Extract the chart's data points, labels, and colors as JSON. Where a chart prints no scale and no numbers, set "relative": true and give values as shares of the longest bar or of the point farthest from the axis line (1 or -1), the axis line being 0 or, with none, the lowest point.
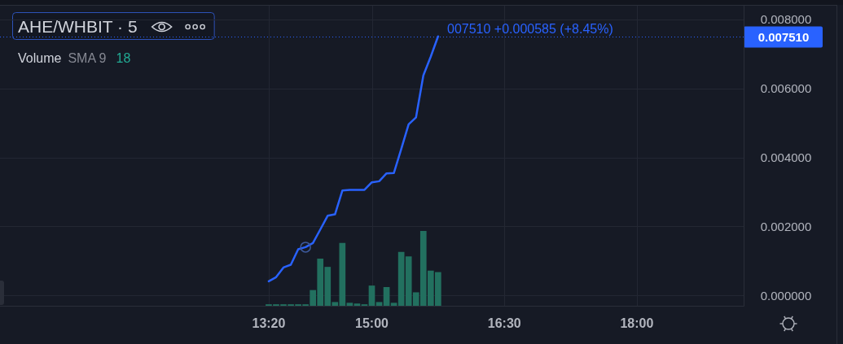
{
  "chart_data": [
    {
      "type": "line",
      "title": "AHE/WHBIT · 5",
      "categories": [
        null,
        null,
        null,
        null,
        null,
        null,
        null,
        null,
        null,
        null,
        null,
        null,
        null,
        null,
        null,
        null,
        null,
        null,
        null,
        null,
        null,
        null,
        null,
        null,
        null,
        null,
        null,
        null,
        null,
        null,
        null,
        null,
        null,
        null,
        null,
        null,
        "13:20",
        null,
        null,
        null,
        null,
        null,
        null,
        null,
        null,
        null,
        null,
        null,
        null,
        null,
        "15:00",
        null,
        null,
        null,
        null,
        null,
        null,
        null,
        null,
        null,
        null,
        null,
        null,
        null,
        null,
        null,
        null,
        null,
        "16:30",
        null,
        null,
        null,
        null,
        null,
        null,
        null,
        null,
        null,
        null,
        null,
        null,
        null,
        null,
        null,
        null,
        null,
        "18:00",
        null,
        null,
        null,
        null,
        null,
        null,
        null,
        null,
        null,
        null,
        null,
        null,
        null,
        null
      ],
      "values": [
        null,
        null,
        null,
        null,
        null,
        null,
        null,
        null,
        null,
        null,
        null,
        null,
        null,
        null,
        null,
        null,
        null,
        null,
        null,
        null,
        null,
        null,
        null,
        null,
        null,
        null,
        null,
        null,
        null,
        null,
        null,
        null,
        null,
        null,
        null,
        null,
        0.00041,
        0.00053,
        0.00081,
        0.00089,
        0.00134,
        0.0014,
        0.00152,
        0.00191,
        0.00231,
        0.00235,
        0.00304,
        0.00306,
        0.00306,
        0.00306,
        0.00328,
        0.00331,
        0.00354,
        0.00355,
        0.00425,
        0.00496,
        0.00516,
        0.00638,
        0.00692,
        0.00751,
        null,
        null,
        null,
        null,
        null,
        null,
        null,
        null,
        null,
        null,
        null,
        null,
        null,
        null,
        null,
        null,
        null,
        null,
        null,
        null,
        null,
        null,
        null,
        null,
        null,
        null,
        null,
        null,
        null,
        null,
        null,
        null,
        null,
        null,
        null,
        null,
        null,
        null,
        null,
        null,
        null
      ],
      "color": "#2962ff",
      "ylim": [
        -0.0003,
        0.0084
      ],
      "yticks": [
        {
          "value": 0,
          "label": "0.000000"
        },
        {
          "value": 0.002,
          "label": "0.002000"
        },
        {
          "value": 0.004,
          "label": "0.004000"
        },
        {
          "value": 0.006,
          "label": "0.006000"
        },
        {
          "value": 0.008,
          "label": "0.008000"
        }
      ],
      "grid": true,
      "ref_lines": [
        {
          "axis": "y",
          "value": 0.00751,
          "label": "0.007510",
          "color": "#2962ff",
          "line_style": "dotted"
        }
      ],
      "annotations": [
        "007510 +0.000585 (+8.45%)"
      ]
    },
    {
      "type": "bar",
      "title": "Volume",
      "categories": [
        null,
        null,
        null,
        null,
        null,
        null,
        null,
        null,
        null,
        null,
        null,
        null,
        null,
        null,
        null,
        null,
        null,
        null,
        null,
        null,
        null,
        null,
        null,
        null,
        null,
        null,
        null,
        null,
        null,
        null,
        null,
        null,
        null,
        null,
        null,
        null,
        null,
        null,
        null,
        null,
        null,
        null,
        null,
        null,
        null,
        null,
        null,
        null,
        null,
        null,
        null,
        null,
        null,
        null,
        null,
        null,
        null,
        null,
        null,
        null,
        null,
        null,
        null,
        null,
        null,
        null,
        null,
        null,
        null,
        null,
        null,
        null,
        null,
        null,
        null,
        null,
        null,
        null,
        null,
        null,
        null,
        null,
        null,
        null,
        null,
        null,
        null,
        null,
        null,
        null,
        null,
        null,
        null,
        null,
        null,
        null,
        null,
        null,
        null,
        null,
        null
      ],
      "values": [
        null,
        null,
        null,
        null,
        null,
        null,
        null,
        null,
        null,
        null,
        null,
        null,
        null,
        null,
        null,
        null,
        null,
        null,
        null,
        null,
        null,
        null,
        null,
        null,
        null,
        null,
        null,
        null,
        null,
        null,
        null,
        null,
        null,
        null,
        null,
        null,
        0.02,
        0.02,
        0.02,
        0.02,
        0.02,
        0.02,
        0.21,
        0.63,
        0.52,
        0.05,
        0.84,
        0.04,
        0.03,
        0.02,
        0.27,
        0.05,
        0.25,
        0.04,
        0.72,
        0.66,
        0.18,
        1,
        0.47,
        0.45,
        null,
        null,
        null,
        null,
        null,
        null,
        null,
        null,
        null,
        null,
        null,
        null,
        null,
        null,
        null,
        null,
        null,
        null,
        null,
        null,
        null,
        null,
        null,
        null,
        null,
        null,
        null,
        null,
        null,
        null,
        null,
        null,
        null,
        null,
        null,
        null,
        null,
        null,
        null,
        null,
        null
      ],
      "color": "#22705f",
      "relative": true,
      "annotations": [
        "SMA 9",
        "18"
      ]
    }
  ]
}
